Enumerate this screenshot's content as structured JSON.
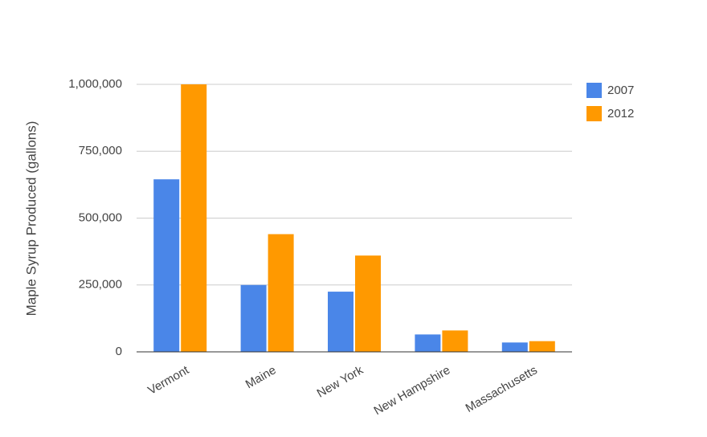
{
  "chart_data": {
    "type": "bar",
    "y_label": "Maple Syrup Produced (gallons)",
    "categories": [
      "Vermont",
      "Maine",
      "New York",
      "New Hampshire",
      "Massachusetts"
    ],
    "series": [
      {
        "name": "2007",
        "color": "#4a86e8",
        "values": [
          645000,
          250000,
          225000,
          65000,
          35000
        ]
      },
      {
        "name": "2012",
        "color": "#ff9900",
        "values": [
          1000000,
          440000,
          360000,
          80000,
          40000
        ]
      }
    ],
    "ylim": [
      0,
      1000000
    ],
    "yticks": [
      0,
      {
        "value": 250000,
        "label": "250,000"
      },
      {
        "value": 500000,
        "label": "500,000"
      },
      {
        "value": 750000,
        "label": "750,000"
      },
      {
        "value": 1000000,
        "label": "1,000,000"
      }
    ],
    "grid": true,
    "legend": "right"
  }
}
